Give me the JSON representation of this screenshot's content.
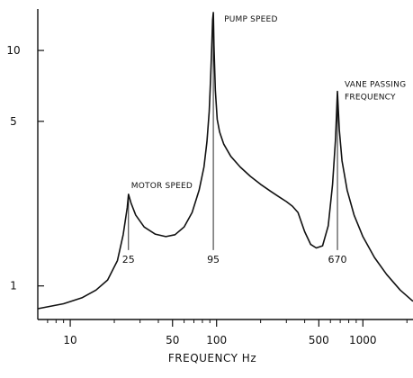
{
  "chart_data": {
    "type": "line",
    "title": "",
    "xlabel": "FREQUENCY   Hz",
    "ylabel": "",
    "x_scale": "log",
    "y_scale": "log",
    "xlim": [
      6,
      2200
    ],
    "ylim": [
      0.72,
      15
    ],
    "x_ticks": [
      {
        "value": 10,
        "label": "10"
      },
      {
        "value": 50,
        "label": "50"
      },
      {
        "value": 100,
        "label": "100"
      },
      {
        "value": 500,
        "label": "500"
      },
      {
        "value": 1000,
        "label": "1000"
      }
    ],
    "y_ticks": [
      {
        "value": 1,
        "label": "1"
      },
      {
        "value": 5,
        "label": "5"
      },
      {
        "value": 10,
        "label": "10"
      }
    ],
    "series": [
      {
        "x": [
          6,
          9,
          12,
          15,
          18,
          21,
          23,
          24.5,
          25,
          26,
          28,
          32,
          38,
          45,
          52,
          60,
          68,
          76,
          82,
          86,
          89,
          91,
          92.5,
          94,
          95,
          96,
          98,
          101,
          105,
          112,
          125,
          145,
          170,
          200,
          235,
          270,
          300,
          330,
          360,
          400,
          440,
          480,
          530,
          580,
          620,
          650,
          670,
          690,
          720,
          780,
          870,
          1000,
          1200,
          1450,
          1800,
          2200
        ],
        "y": [
          0.8,
          0.84,
          0.89,
          0.96,
          1.06,
          1.28,
          1.65,
          2.15,
          2.45,
          2.25,
          2.0,
          1.78,
          1.66,
          1.62,
          1.65,
          1.78,
          2.05,
          2.55,
          3.2,
          4.1,
          5.5,
          7.5,
          10.0,
          13.5,
          14.5,
          10.5,
          6.8,
          5.1,
          4.5,
          4.0,
          3.55,
          3.2,
          2.92,
          2.7,
          2.52,
          2.38,
          2.28,
          2.18,
          2.05,
          1.7,
          1.5,
          1.45,
          1.48,
          1.8,
          2.7,
          4.2,
          6.7,
          4.6,
          3.4,
          2.55,
          2.0,
          1.62,
          1.32,
          1.12,
          0.96,
          0.86
        ]
      }
    ],
    "annotations": [
      {
        "text": "MOTOR SPEED",
        "x": 25,
        "y": 2.45,
        "marker": "25"
      },
      {
        "text": "PUMP SPEED",
        "x": 95,
        "y": 14.5,
        "marker": "95"
      },
      {
        "text": "VANE PASSING",
        "text2": "FREQUENCY",
        "x": 670,
        "y": 6.7,
        "marker": "670"
      }
    ]
  }
}
